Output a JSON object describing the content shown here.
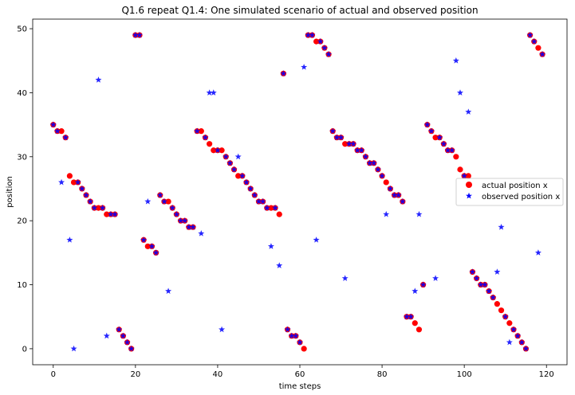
{
  "chart_data": {
    "type": "scatter",
    "title": "Q1.6 repeat Q1.4: One simulated scenario of actual and observed position",
    "xlabel": "time steps",
    "ylabel": "position",
    "xlim": [
      -5,
      125
    ],
    "ylim": [
      -2.5,
      51.5
    ],
    "xticks": [
      0,
      20,
      40,
      60,
      80,
      100,
      120
    ],
    "yticks": [
      0,
      10,
      20,
      30,
      40,
      50
    ],
    "grid": false,
    "legend_position": "center-right",
    "series": [
      {
        "name": "actual position x",
        "marker": "circle",
        "color": "#ff0000",
        "x": [
          0,
          1,
          2,
          3,
          4,
          5,
          6,
          7,
          8,
          9,
          10,
          11,
          12,
          13,
          14,
          15,
          16,
          17,
          18,
          19,
          20,
          21,
          22,
          23,
          24,
          25,
          26,
          27,
          28,
          29,
          30,
          31,
          32,
          33,
          34,
          35,
          36,
          37,
          38,
          39,
          40,
          41,
          42,
          43,
          44,
          45,
          46,
          47,
          48,
          49,
          50,
          51,
          52,
          53,
          54,
          55,
          56,
          57,
          58,
          59,
          60,
          61,
          62,
          63,
          64,
          65,
          66,
          67,
          68,
          69,
          70,
          71,
          72,
          73,
          74,
          75,
          76,
          77,
          78,
          79,
          80,
          81,
          82,
          83,
          84,
          85,
          86,
          87,
          88,
          89,
          90,
          91,
          92,
          93,
          94,
          95,
          96,
          97,
          98,
          99,
          100,
          101,
          102,
          103,
          104,
          105,
          106,
          107,
          108,
          109,
          110,
          111,
          112,
          113,
          114,
          115,
          116,
          117,
          118,
          119
        ],
        "y": [
          35,
          34,
          34,
          33,
          27,
          26,
          26,
          25,
          24,
          23,
          22,
          22,
          22,
          21,
          21,
          21,
          3,
          2,
          1,
          0,
          49,
          49,
          17,
          16,
          16,
          15,
          24,
          23,
          23,
          22,
          21,
          20,
          20,
          19,
          19,
          34,
          34,
          33,
          32,
          31,
          31,
          31,
          30,
          29,
          28,
          27,
          27,
          26,
          25,
          24,
          23,
          23,
          22,
          22,
          22,
          21,
          43,
          3,
          2,
          2,
          1,
          0,
          49,
          49,
          48,
          48,
          47,
          46,
          34,
          33,
          33,
          32,
          32,
          32,
          31,
          31,
          30,
          29,
          29,
          28,
          27,
          26,
          25,
          24,
          24,
          23,
          5,
          5,
          4,
          3,
          10,
          35,
          34,
          33,
          33,
          32,
          31,
          31,
          30,
          28,
          27,
          27,
          12,
          11,
          10,
          10,
          9,
          8,
          7,
          6,
          5,
          4,
          3,
          2,
          1,
          0,
          49,
          48,
          47,
          46
        ]
      },
      {
        "name": "observed position x",
        "marker": "star",
        "color": "#0000ff",
        "x": [
          0,
          1,
          2,
          3,
          4,
          5,
          6,
          7,
          8,
          9,
          10,
          11,
          12,
          13,
          14,
          15,
          16,
          17,
          18,
          19,
          20,
          21,
          22,
          23,
          24,
          25,
          26,
          27,
          28,
          29,
          30,
          31,
          32,
          33,
          34,
          35,
          36,
          37,
          38,
          39,
          40,
          41,
          42,
          43,
          44,
          45,
          46,
          47,
          48,
          49,
          50,
          51,
          52,
          53,
          54,
          55,
          56,
          57,
          58,
          59,
          60,
          61,
          62,
          63,
          64,
          65,
          66,
          67,
          68,
          69,
          70,
          71,
          72,
          73,
          74,
          75,
          76,
          77,
          78,
          79,
          80,
          81,
          82,
          83,
          84,
          85,
          86,
          87,
          88,
          89,
          90,
          91,
          92,
          93,
          94,
          95,
          96,
          97,
          98,
          99,
          100,
          101,
          102,
          103,
          104,
          105,
          106,
          107,
          108,
          109,
          110,
          111,
          112,
          113,
          114,
          115,
          116,
          117,
          118,
          119
        ],
        "y": [
          35,
          34,
          26,
          33,
          17,
          0,
          26,
          25,
          24,
          23,
          22,
          42,
          22,
          2,
          21,
          21,
          3,
          2,
          1,
          0,
          49,
          49,
          17,
          23,
          16,
          15,
          24,
          23,
          9,
          22,
          21,
          20,
          20,
          19,
          19,
          34,
          18,
          33,
          40,
          40,
          31,
          3,
          30,
          29,
          28,
          30,
          27,
          26,
          25,
          24,
          23,
          23,
          22,
          16,
          22,
          13,
          43,
          3,
          2,
          2,
          1,
          44,
          49,
          49,
          17,
          48,
          47,
          46,
          34,
          33,
          33,
          11,
          32,
          32,
          31,
          31,
          30,
          29,
          29,
          28,
          27,
          21,
          25,
          24,
          24,
          23,
          5,
          5,
          9,
          21,
          10,
          35,
          34,
          11,
          33,
          32,
          31,
          31,
          45,
          40,
          27,
          37,
          12,
          11,
          10,
          10,
          9,
          8,
          12,
          19,
          5,
          1,
          3,
          2,
          1,
          0,
          49,
          48,
          15,
          46
        ]
      }
    ]
  }
}
